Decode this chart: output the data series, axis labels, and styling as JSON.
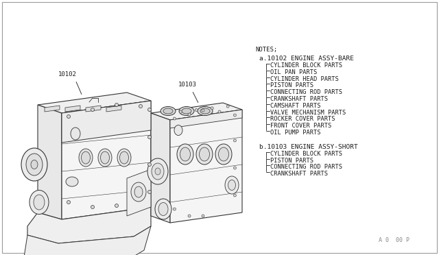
{
  "bg_color": "#ffffff",
  "border_color": "#aaaaaa",
  "text_color": "#1a1a1a",
  "title_bottom": "A 0  00 P",
  "notes_header": "NOTES;",
  "section_a_header": "a.10102 ENGINE ASSY-BARE",
  "section_a_items": [
    "CYLINDER BLOCK PARTS",
    "OIL PAN PARTS",
    "CYLINDER HEAD PARTS",
    "PISTON PARTS",
    "CONNECTING ROD PARTS",
    "CRANKSHAFT PARTS",
    "CAMSHAFT PARTS",
    "VALVE MECHANISM PARTS",
    "ROCKER COVER PARTS",
    "FRONT COVER PARTS",
    "OIL PUMP PARTS"
  ],
  "section_b_header": "b.10103 ENGINE ASSY-SHORT",
  "section_b_items": [
    "CYLINDER BLOCK PARTS",
    "PISTON PARTS",
    "CONNECTING ROD PARTS",
    "CRANKSHAFT PARTS"
  ],
  "label_10102": "10102",
  "label_10103": "10103",
  "font_size_notes": 6.5,
  "font_size_header": 6.8,
  "font_size_items": 6.2,
  "font_size_labels": 6.5,
  "font_family": "monospace",
  "line_color": "#333333",
  "line_width": 0.7
}
